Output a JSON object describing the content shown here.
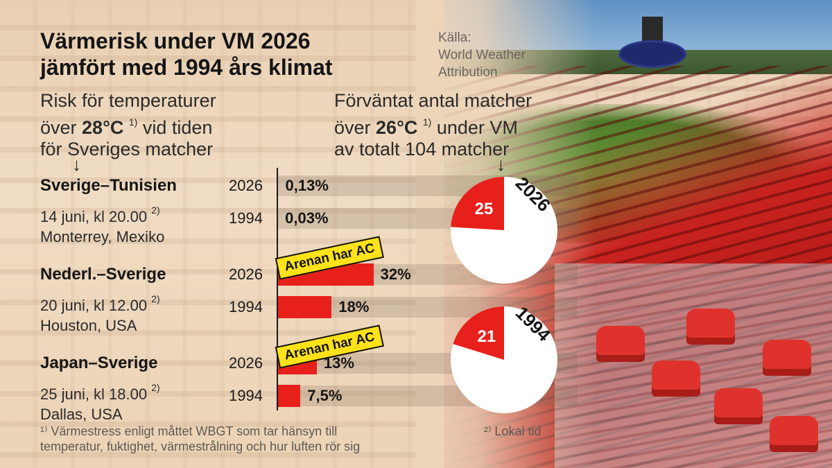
{
  "title_line1": "Värmerisk under VM 2026",
  "title_line2": "jämfört med 1994 års klimat",
  "source_line1": "Källa:",
  "source_line2": "World Weather",
  "source_line3": "Attribution",
  "left_desc": {
    "line1": "Risk för temperaturer",
    "line2_pre": "över ",
    "line2_bold": "28°C",
    "line2_sup": "1)",
    "line2_post": " vid tiden",
    "line3": "för Sveriges matcher"
  },
  "right_desc": {
    "line1": "Förväntat antal matcher",
    "line2_pre": "över ",
    "line2_bold": "26°C",
    "line2_sup": "1)",
    "line2_post": " under VM",
    "line3": "av totalt 104 matcher"
  },
  "arrow_glyph": "↓",
  "ac_label": "Arenan har AC",
  "footnote1_line1": "¹⁾ Värmestress enligt måttet WBGT som tar hänsyn till",
  "footnote1_line2": "temperatur, fuktighet, värmestrålning och hur luften rör sig",
  "footnote2": "²⁾ Lokal tid",
  "colors": {
    "bar": "#e8201c",
    "ac_badge": "#ffe21a",
    "pie_highlight": "#e8201c",
    "pie_rest": "#ffffff"
  },
  "chart_data": [
    {
      "type": "bar",
      "title": "Risk för temperaturer över 28°C vid tiden för Sveriges matcher",
      "unit": "%",
      "matches": [
        {
          "name": "Sverige–Tunisien",
          "date": "14 juni, kl 20.00",
          "date_sup": "2)",
          "place": "Monterrey, Mexiko",
          "arena_ac": false,
          "rows": [
            {
              "year": "2026",
              "value": 0.13,
              "label": "0,13%"
            },
            {
              "year": "1994",
              "value": 0.03,
              "label": "0,03%"
            }
          ]
        },
        {
          "name": "Nederl.–Sverige",
          "date": "20 juni, kl 12.00",
          "date_sup": "2)",
          "place": "Houston, USA",
          "arena_ac": true,
          "rows": [
            {
              "year": "2026",
              "value": 32,
              "label": "32%"
            },
            {
              "year": "1994",
              "value": 18,
              "label": "18%"
            }
          ]
        },
        {
          "name": "Japan–Sverige",
          "date": "25 juni, kl 18.00",
          "date_sup": "2)",
          "place": "Dallas, USA",
          "arena_ac": true,
          "rows": [
            {
              "year": "2026",
              "value": 13,
              "label": "13%"
            },
            {
              "year": "1994",
              "value": 7.5,
              "label": "7,5%"
            }
          ]
        }
      ]
    },
    {
      "type": "pie",
      "title": "Förväntat antal matcher över 26°C under VM av totalt 104 matcher",
      "total": 104,
      "pies": [
        {
          "year": "2026",
          "value": 25,
          "label": "25"
        },
        {
          "year": "1994",
          "value": 21,
          "label": "21"
        }
      ]
    }
  ]
}
